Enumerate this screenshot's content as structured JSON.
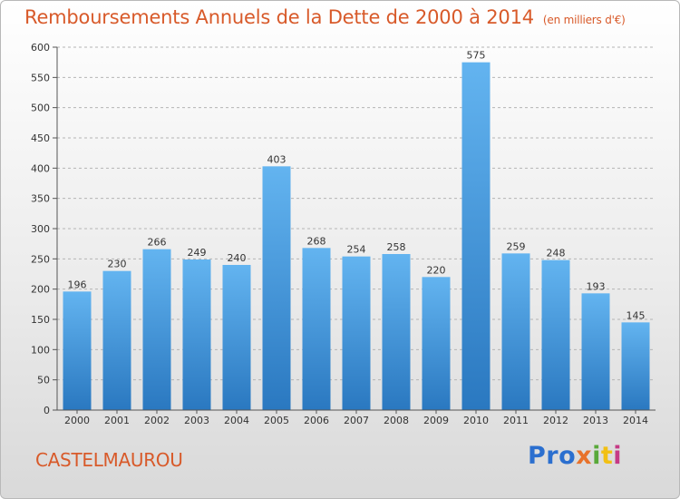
{
  "chart_data": {
    "type": "bar",
    "title": "Remboursements Annuels de la Dette de 2000 à 2014",
    "unit": "(en milliers d'€)",
    "categories": [
      "2000",
      "2001",
      "2002",
      "2003",
      "2004",
      "2005",
      "2006",
      "2007",
      "2008",
      "2009",
      "2010",
      "2011",
      "2012",
      "2013",
      "2014"
    ],
    "values": [
      196,
      230,
      266,
      249,
      240,
      403,
      268,
      254,
      258,
      220,
      575,
      259,
      248,
      193,
      145
    ],
    "ylim": [
      0,
      600
    ],
    "yticks": [
      0,
      50,
      100,
      150,
      200,
      250,
      300,
      350,
      400,
      450,
      500,
      550,
      600
    ],
    "grid": true,
    "bar_color": "#3a93dd",
    "data_labels": true
  },
  "place": "CASTELMAUROU",
  "logo": {
    "parts": [
      "Pro",
      "x",
      "i",
      "t",
      "i"
    ]
  }
}
